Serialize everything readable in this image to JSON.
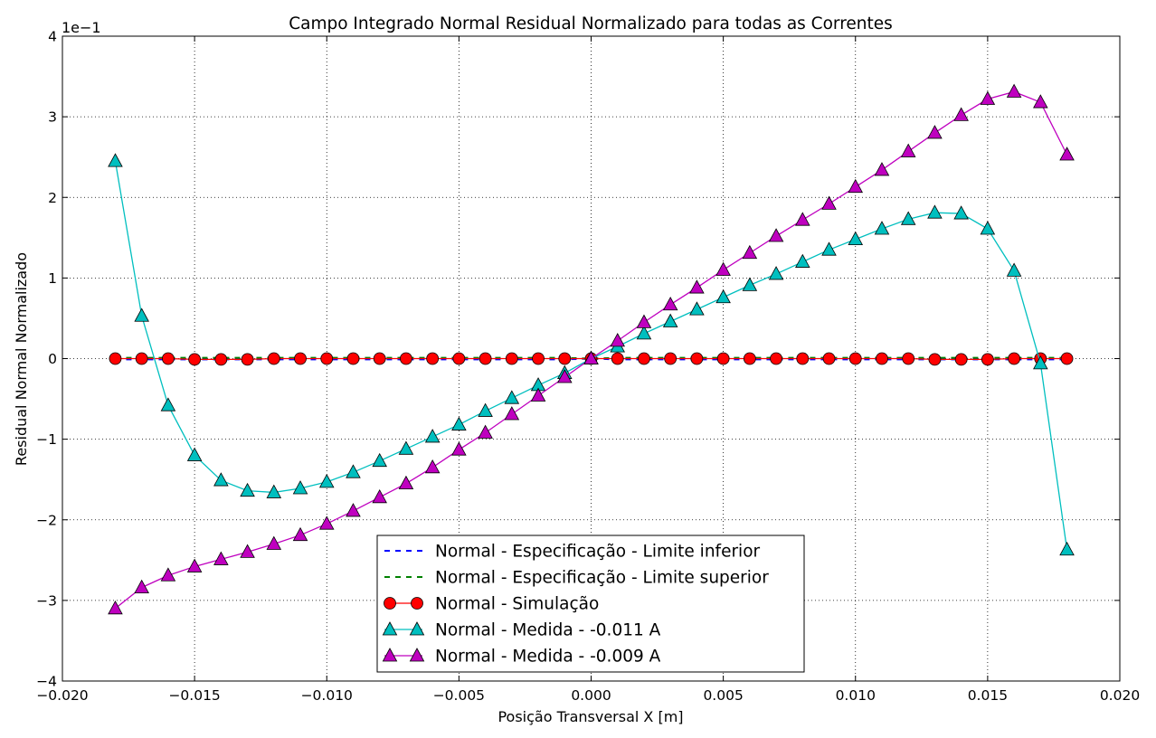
{
  "chart_data": {
    "type": "line",
    "title": "Campo Integrado Normal Residual Normalizado para todas as Correntes",
    "xlabel": "Posição Transversal X [m]",
    "ylabel": "Residual Normal Normalizado",
    "y_offset_text": "1e−1",
    "xlim": [
      -0.02,
      0.02
    ],
    "ylim": [
      -4,
      4
    ],
    "x_ticks": [
      -0.02,
      -0.015,
      -0.01,
      -0.005,
      0.0,
      0.005,
      0.01,
      0.015,
      0.02
    ],
    "x_tick_labels": [
      "−0.020",
      "−0.015",
      "−0.010",
      "−0.005",
      "0.000",
      "0.005",
      "0.010",
      "0.015",
      "0.020"
    ],
    "y_ticks": [
      -4,
      -3,
      -2,
      -1,
      0,
      1,
      2,
      3,
      4
    ],
    "y_tick_labels": [
      "−4",
      "−3",
      "−2",
      "−1",
      "0",
      "1",
      "2",
      "3",
      "4"
    ],
    "grid": true,
    "legend_position": "lower-center",
    "x": [
      -0.018,
      -0.017,
      -0.016,
      -0.015,
      -0.014,
      -0.013,
      -0.012,
      -0.011,
      -0.01,
      -0.009,
      -0.008,
      -0.007,
      -0.006,
      -0.005,
      -0.004,
      -0.003,
      -0.002,
      -0.001,
      0.0,
      0.001,
      0.002,
      0.003,
      0.004,
      0.005,
      0.006,
      0.007,
      0.008,
      0.009,
      0.01,
      0.011,
      0.012,
      0.013,
      0.014,
      0.015,
      0.016,
      0.017,
      0.018
    ],
    "series": [
      {
        "name": "Normal - Especificação - Limite inferior",
        "color": "#0000ff",
        "style": "dashed",
        "marker": "none",
        "values": [
          -0.01,
          -0.01,
          -0.01,
          -0.01,
          -0.01,
          -0.01,
          -0.01,
          -0.01,
          -0.01,
          -0.01,
          -0.01,
          -0.01,
          -0.01,
          -0.01,
          -0.01,
          -0.01,
          -0.01,
          -0.01,
          0,
          -0.01,
          -0.01,
          -0.01,
          -0.01,
          -0.01,
          -0.01,
          -0.01,
          -0.01,
          -0.01,
          -0.01,
          -0.01,
          -0.01,
          -0.01,
          -0.01,
          -0.01,
          -0.01,
          -0.01,
          -0.01
        ]
      },
      {
        "name": "Normal - Especificação - Limite superior",
        "color": "#008000",
        "style": "dashed",
        "marker": "none",
        "values": [
          0.01,
          0.01,
          0.01,
          0.01,
          0.01,
          0.01,
          0.01,
          0.01,
          0.01,
          0.01,
          0.01,
          0.01,
          0.01,
          0.01,
          0.01,
          0.01,
          0.01,
          0.01,
          0,
          0.01,
          0.01,
          0.01,
          0.01,
          0.01,
          0.01,
          0.01,
          0.01,
          0.01,
          0.01,
          0.01,
          0.01,
          0.01,
          0.01,
          0.01,
          0.01,
          0.01,
          0.01
        ]
      },
      {
        "name": "Normal - Simulação",
        "color": "#ff0000",
        "style": "solid",
        "marker": "circle",
        "values": [
          0.0,
          0.0,
          0.0,
          -0.01,
          -0.01,
          -0.01,
          0.0,
          0.0,
          0.0,
          0.0,
          0.0,
          0.0,
          0.0,
          0.0,
          0.0,
          0.0,
          0.0,
          0.0,
          0.0,
          0.0,
          0.0,
          0.0,
          0.0,
          0.0,
          0.0,
          0.0,
          0.0,
          0.0,
          0.0,
          0.0,
          0.0,
          -0.01,
          -0.01,
          -0.01,
          0.0,
          0.0,
          0.0
        ]
      },
      {
        "name": "Normal - Medida - -0.011 A",
        "color": "#00bfbf",
        "style": "solid",
        "marker": "triangle",
        "values": [
          2.45,
          0.53,
          -0.58,
          -1.2,
          -1.51,
          -1.64,
          -1.66,
          -1.61,
          -1.53,
          -1.41,
          -1.27,
          -1.12,
          -0.97,
          -0.82,
          -0.65,
          -0.49,
          -0.33,
          -0.18,
          0.0,
          0.15,
          0.31,
          0.46,
          0.61,
          0.76,
          0.91,
          1.05,
          1.2,
          1.35,
          1.48,
          1.61,
          1.73,
          1.81,
          1.8,
          1.61,
          1.09,
          -0.06,
          -2.37
        ]
      },
      {
        "name": "Normal - Medida - -0.009 A",
        "color": "#bf00bf",
        "style": "solid",
        "marker": "triangle",
        "values": [
          -3.1,
          -2.84,
          -2.69,
          -2.58,
          -2.49,
          -2.4,
          -2.3,
          -2.19,
          -2.05,
          -1.89,
          -1.72,
          -1.55,
          -1.35,
          -1.13,
          -0.92,
          -0.69,
          -0.46,
          -0.23,
          0.0,
          0.22,
          0.45,
          0.67,
          0.88,
          1.1,
          1.31,
          1.52,
          1.72,
          1.92,
          2.13,
          2.34,
          2.57,
          2.8,
          3.02,
          3.22,
          3.31,
          3.18,
          2.53
        ]
      }
    ]
  }
}
